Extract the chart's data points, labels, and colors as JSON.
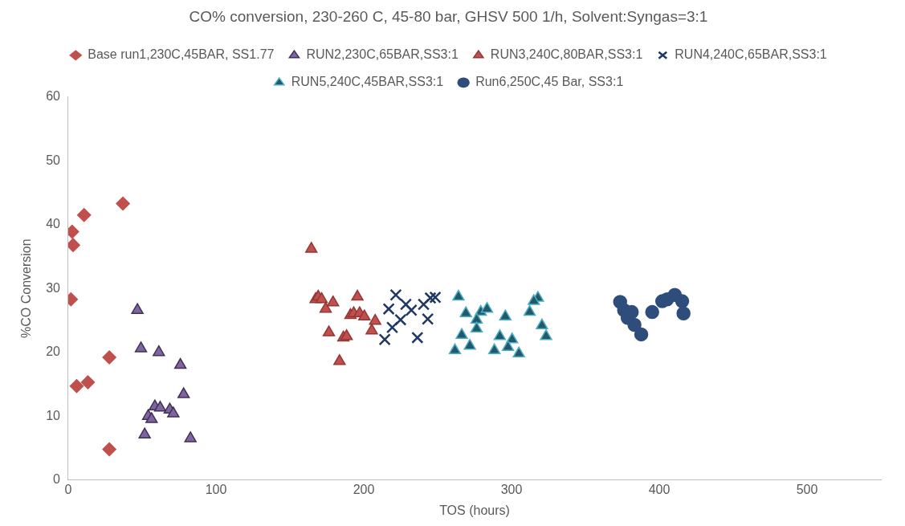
{
  "chart_data": {
    "type": "scatter",
    "title": "CO% conversion, 230-260 C, 45-80 bar, GHSV 500 1/h, Solvent:Syngas=3:1",
    "xlabel": "TOS (hours)",
    "ylabel": "%CO Conversion",
    "xlim": [
      0,
      550
    ],
    "xticks": [
      0,
      100,
      200,
      300,
      400,
      500
    ],
    "ylim": [
      0,
      60
    ],
    "yticks": [
      0,
      10,
      20,
      30,
      40,
      50,
      60
    ],
    "grid": false,
    "legend": "top",
    "series": [
      {
        "name": "Base run1,230C,45BAR, SS1.77",
        "color": "#c0504d",
        "marker": "diamond",
        "x": [
          37,
          10.7,
          2.6,
          3.3,
          1.8,
          27.8,
          5.7,
          13.3,
          27.8
        ],
        "values": [
          43.3,
          41.5,
          38.9,
          36.8,
          28.3,
          19.2,
          14.7,
          15.3,
          4.8
        ]
      },
      {
        "name": "RUN2,230C,65BAR,SS3:1",
        "color": "#8064a2",
        "marker": "triangle",
        "x": [
          46.8,
          49.2,
          61.3,
          75.9,
          78.1,
          58.6,
          62.2,
          54.1,
          56.4,
          68.7,
          71.1,
          51.7,
          82.7
        ],
        "values": [
          26.6,
          20.6,
          20.0,
          18.0,
          13.4,
          11.5,
          11.3,
          10.0,
          9.5,
          11.0,
          10.4,
          7.1,
          6.5
        ]
      },
      {
        "name": "RUN3,240C,80BAR,SS3:1",
        "color": "#c0504d",
        "marker": "triangle",
        "x": [
          164.5,
          167.4,
          169.2,
          171.5,
          174.2,
          179.2,
          195.7,
          176.4,
          186.2,
          188.4,
          183.6,
          191,
          193.2,
          197.2,
          200.4,
          207.7,
          205.4
        ],
        "values": [
          36.2,
          28.3,
          28.7,
          28.3,
          26.8,
          27.8,
          28.7,
          23.1,
          22.3,
          22.5,
          18.6,
          25.8,
          26.1,
          26.1,
          25.6,
          24.9,
          23.4
        ]
      },
      {
        "name": "RUN4,240C,65BAR,SS3:1",
        "color": "#1f3864",
        "marker": "cross",
        "x": [
          221.7,
          216.9,
          228.5,
          232.2,
          224.9,
          219.3,
          214.2,
          236.3,
          240.5,
          243.3,
          245.1,
          248.4
        ],
        "values": [
          29.0,
          26.8,
          27.5,
          26.6,
          25.1,
          23.9,
          22.0,
          22.3,
          27.5,
          25.2,
          28.5,
          28.6
        ]
      },
      {
        "name": "RUN5,240C,45BAR,SS3:1",
        "color": "#215968",
        "marker": "triangle",
        "x": [
          264.1,
          269.1,
          279.2,
          283.4,
          276.4,
          276.4,
          295.8,
          266.3,
          271.8,
          261.7,
          292.1,
          288.4,
          300.4,
          297.6,
          305,
          317.9,
          315.1,
          312.3,
          320.6,
          323.4
        ],
        "values": [
          28.7,
          26.1,
          26.3,
          26.8,
          25.1,
          23.7,
          25.6,
          22.7,
          21.0,
          20.3,
          22.5,
          20.3,
          22.0,
          20.8,
          19.8,
          28.5,
          28.0,
          26.3,
          24.2,
          22.5
        ]
      },
      {
        "name": "Run6,250C,45 Bar, SS3:1",
        "color": "#2e4d7b",
        "marker": "circle",
        "x": [
          373.5,
          376.2,
          381.4,
          378.6,
          383.2,
          387.8,
          395.2,
          402,
          405.3,
          410.5,
          415.5,
          416.4
        ],
        "values": [
          27.9,
          26.6,
          26.3,
          25.4,
          24.3,
          22.8,
          26.3,
          28.0,
          28.3,
          29.0,
          28.0,
          26.1
        ]
      }
    ]
  }
}
